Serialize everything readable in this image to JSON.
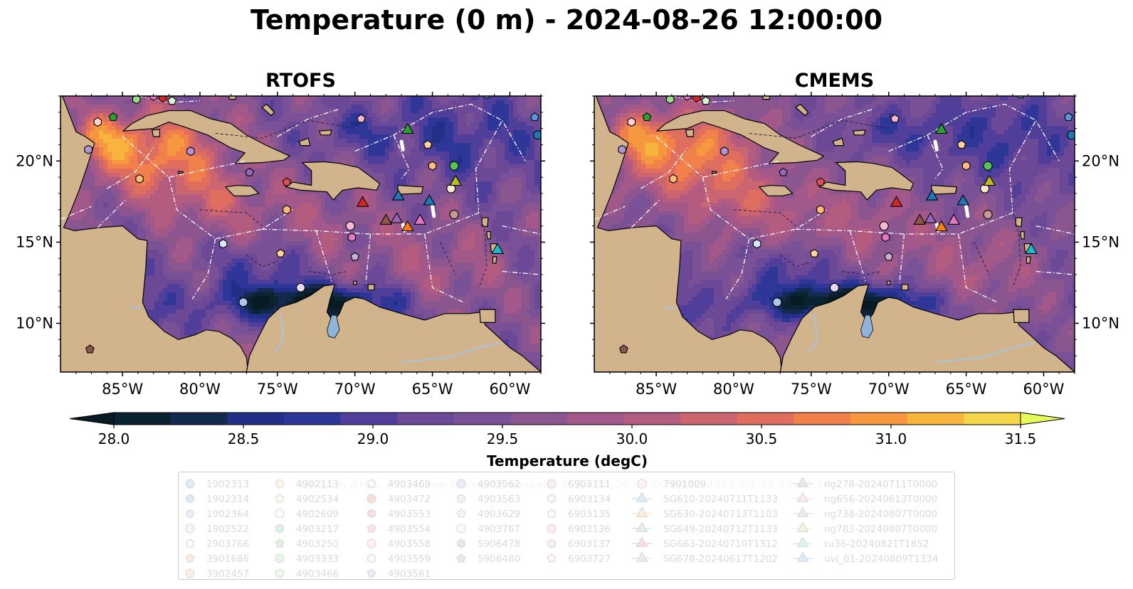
{
  "title": "Temperature (0 m) - 2024-08-26 12:00:00",
  "panels": [
    {
      "title": "RTOFS"
    },
    {
      "title": "CMEMS"
    }
  ],
  "lat_labels": [
    "20°N",
    "15°N",
    "10°N"
  ],
  "lon_labels": [
    "85°W",
    "80°W",
    "75°W",
    "70°W",
    "65°W",
    "60°W"
  ],
  "colorbar": {
    "label": "Temperature (degC)",
    "ticks": [
      "28.0",
      "28.5",
      "29.0",
      "29.5",
      "30.0",
      "30.5",
      "31.0",
      "31.5"
    ],
    "range": [
      28.0,
      31.5
    ],
    "colors": [
      "#0b2230",
      "#13294d",
      "#222f86",
      "#2e3798",
      "#503f9a",
      "#6b4997",
      "#7a5096",
      "#8b5590",
      "#a3588a",
      "#b45c80",
      "#cb6570",
      "#e06e5e",
      "#f1804a",
      "#f6983f",
      "#f8b43d",
      "#f3d649"
    ],
    "under_color": "#081a24",
    "over_color": "#e8fa5b"
  },
  "map_colors": {
    "land": "#d2b48c",
    "lake": "#8fb3d9",
    "river": "#a6c3e0"
  },
  "watermark": "Gliders, Argo, Hurricane Research Vessels: 2024-08-26 00:00:00 to 2024-08-26 12:00:00",
  "legend_columns": [
    [
      {
        "label": "1902313",
        "marker": "circle",
        "color": "#1f77b4"
      },
      {
        "label": "1902314",
        "marker": "hexagon",
        "color": "#1f77b4"
      },
      {
        "label": "1902364",
        "marker": "pentagon",
        "color": "#5599dd"
      },
      {
        "label": "1902522",
        "marker": "circle",
        "color": "#aec7e8"
      },
      {
        "label": "2903766",
        "marker": "hexagon",
        "color": "#d6e8f8"
      },
      {
        "label": "3901686",
        "marker": "pentagon",
        "color": "#ff7f0e"
      },
      {
        "label": "3902457",
        "marker": "circle",
        "color": "#ff8c28"
      }
    ],
    [
      {
        "label": "4902113",
        "marker": "hexagon",
        "color": "#ffbb78"
      },
      {
        "label": "4902534",
        "marker": "pentagon",
        "color": "#ffd39b"
      },
      {
        "label": "4902609",
        "marker": "circle",
        "color": "#ffe9cc"
      },
      {
        "label": "4903217",
        "marker": "hexagon",
        "color": "#2ca02c"
      },
      {
        "label": "4903250",
        "marker": "pentagon",
        "color": "#2ca02c"
      },
      {
        "label": "4903333",
        "marker": "circle",
        "color": "#55c455"
      },
      {
        "label": "4903466",
        "marker": "hexagon",
        "color": "#98df8a"
      }
    ],
    [
      {
        "label": "4903469",
        "marker": "pentagon",
        "color": "#d6f5d0"
      },
      {
        "label": "4903472",
        "marker": "circle",
        "color": "#d62728"
      },
      {
        "label": "4903553",
        "marker": "hexagon",
        "color": "#d62728"
      },
      {
        "label": "4903554",
        "marker": "pentagon",
        "color": "#e04f50"
      },
      {
        "label": "4903558",
        "marker": "circle",
        "color": "#ff9896"
      },
      {
        "label": "4903559",
        "marker": "hexagon",
        "color": "#ffd0cf"
      },
      {
        "label": "4903561",
        "marker": "pentagon",
        "color": "#9467bd"
      }
    ],
    [
      {
        "label": "4903562",
        "marker": "circle",
        "color": "#9467bd"
      },
      {
        "label": "4903563",
        "marker": "hexagon",
        "color": "#b294d6"
      },
      {
        "label": "4903629",
        "marker": "pentagon",
        "color": "#c5b0d5"
      },
      {
        "label": "4903767",
        "marker": "circle",
        "color": "#e5d8f0"
      },
      {
        "label": "5906478",
        "marker": "hexagon",
        "color": "#8c564b"
      },
      {
        "label": "5906480",
        "marker": "pentagon",
        "color": "#8c564b"
      }
    ],
    [
      {
        "label": "6903111",
        "marker": "circle",
        "color": "#c49c94"
      },
      {
        "label": "6903134",
        "marker": "hexagon",
        "color": "#e5b9ab"
      },
      {
        "label": "6903135",
        "marker": "pentagon",
        "color": "#f5ddd5"
      },
      {
        "label": "6903136",
        "marker": "circle",
        "color": "#e377c2"
      },
      {
        "label": "6903137",
        "marker": "hexagon",
        "color": "#e377c2"
      },
      {
        "label": "6903727",
        "marker": "pentagon",
        "color": "#f7b6d2"
      }
    ],
    [
      {
        "label": "7901009",
        "marker": "circle",
        "color": "#f7b6d2"
      },
      {
        "label": "SG610-20240711T1133",
        "marker": "triangle",
        "color": "#1f77b4"
      },
      {
        "label": "SG630-20240713T1103",
        "marker": "triangle",
        "color": "#ff7f0e"
      },
      {
        "label": "SG649-20240712T1133",
        "marker": "triangle",
        "color": "#2ca02c"
      },
      {
        "label": "SG663-20240710T1312",
        "marker": "triangle",
        "color": "#d62728"
      },
      {
        "label": "SG678-20240617T1202",
        "marker": "triangle",
        "color": "#9467bd"
      }
    ],
    [
      {
        "label": "ng278-20240711T0000",
        "marker": "triangle",
        "color": "#8c564b"
      },
      {
        "label": "ng656-20240613T0000",
        "marker": "triangle",
        "color": "#e377c2"
      },
      {
        "label": "ng738-20240807T0000",
        "marker": "triangle",
        "color": "#7f7f7f"
      },
      {
        "label": "ng783-20240807T0000",
        "marker": "triangle",
        "color": "#bcbd22"
      },
      {
        "label": "ru36-20240821T1852",
        "marker": "triangle",
        "color": "#17becf"
      },
      {
        "label": "uvi_01-20240809T1334",
        "marker": "triangle",
        "color": "#1f77b4"
      }
    ]
  ],
  "chart_data": {
    "type": "heatmap",
    "title": "Temperature (0 m) - 2024-08-26 12:00:00",
    "panels": [
      "RTOFS",
      "CMEMS"
    ],
    "lon_range": [
      -89,
      -58
    ],
    "lat_range": [
      7,
      24
    ],
    "color_range": [
      28.0,
      31.5
    ],
    "colorbar_label": "Temperature (degC)",
    "observations": [
      {
        "name": "4903250",
        "marker": "pentagon",
        "color": "#2ca02c",
        "lon": -85.6,
        "lat": 22.7
      },
      {
        "name": "6903137",
        "marker": "hexagon",
        "color": "#e377c2",
        "lon": -83.0,
        "lat": 24.0
      },
      {
        "name": "4903466",
        "marker": "hexagon",
        "color": "#98df8a",
        "lon": -84.1,
        "lat": 23.8
      },
      {
        "name": "4903559",
        "marker": "hexagon",
        "color": "#ffd0cf",
        "lon": -86.6,
        "lat": 22.4
      },
      {
        "name": "4903469",
        "marker": "pentagon",
        "color": "#d6f5d0",
        "lon": -81.8,
        "lat": 23.7
      },
      {
        "name": "4903553",
        "marker": "hexagon",
        "color": "#d62728",
        "lon": -82.4,
        "lat": 23.9
      },
      {
        "name": "4903563",
        "marker": "hexagon",
        "color": "#b294d6",
        "lon": -87.2,
        "lat": 20.7
      },
      {
        "name": "4903563",
        "marker": "hexagon",
        "color": "#b294d6",
        "lon": -80.6,
        "lat": 20.6
      },
      {
        "name": "4903561",
        "marker": "pentagon",
        "color": "#9467bd",
        "lon": -76.8,
        "lat": 19.3
      },
      {
        "name": "4902113",
        "marker": "hexagon",
        "color": "#ffbb78",
        "lon": -83.9,
        "lat": 18.9
      },
      {
        "name": "4903554",
        "marker": "pentagon",
        "color": "#e04f50",
        "lon": -74.4,
        "lat": 18.7
      },
      {
        "name": "4902113",
        "marker": "hexagon",
        "color": "#ffbb78",
        "lon": -74.4,
        "lat": 17.0
      },
      {
        "name": "6903727",
        "marker": "pentagon",
        "color": "#f7b6d2",
        "lon": -69.6,
        "lat": 22.6
      },
      {
        "name": "4903629",
        "marker": "pentagon",
        "color": "#c5b0d5",
        "lon": -70.0,
        "lat": 14.1
      },
      {
        "name": "7901009",
        "marker": "circle",
        "color": "#f7b6d2",
        "lon": -70.3,
        "lat": 16.0
      },
      {
        "name": "6903137",
        "marker": "hexagon",
        "color": "#e377c2",
        "lon": -70.2,
        "lat": 15.3
      },
      {
        "name": "2903766",
        "marker": "hexagon",
        "color": "#d6e8f8",
        "lon": -78.5,
        "lat": 14.9
      },
      {
        "name": "4902534",
        "marker": "pentagon",
        "color": "#ffd39b",
        "lon": -74.8,
        "lat": 14.3
      },
      {
        "name": "4903767",
        "marker": "circle",
        "color": "#e5d8f0",
        "lon": -73.5,
        "lat": 12.2
      },
      {
        "name": "1902522",
        "marker": "circle",
        "color": "#aec7e8",
        "lon": -77.2,
        "lat": 11.3
      },
      {
        "name": "5906480",
        "marker": "pentagon",
        "color": "#8c564b",
        "lon": -87.1,
        "lat": 8.4
      },
      {
        "name": "4902534",
        "marker": "pentagon",
        "color": "#ffd39b",
        "lon": -65.3,
        "lat": 21.0
      },
      {
        "name": "4902113",
        "marker": "hexagon",
        "color": "#ffbb78",
        "lon": -65.0,
        "lat": 19.7
      },
      {
        "name": "4903333",
        "marker": "circle",
        "color": "#55c455",
        "lon": -63.6,
        "lat": 19.7
      },
      {
        "name": "4902609",
        "marker": "circle",
        "color": "#ffe9cc",
        "lon": -63.8,
        "lat": 18.3
      },
      {
        "name": "6903111",
        "marker": "circle",
        "color": "#c49c94",
        "lon": -63.6,
        "lat": 16.7
      },
      {
        "name": "1902364",
        "marker": "pentagon",
        "color": "#5599dd",
        "lon": -61.5,
        "lat": 24.1
      },
      {
        "name": "1902364",
        "marker": "pentagon",
        "color": "#5599dd",
        "lon": -58.4,
        "lat": 22.7
      },
      {
        "name": "1902313",
        "marker": "circle",
        "color": "#1f77b4",
        "lon": -58.2,
        "lat": 21.6
      },
      {
        "name": "SG649-20240712T1133",
        "marker": "triangle",
        "color": "#2ca02c",
        "lon": -66.6,
        "lat": 21.9
      },
      {
        "name": "ng783-20240807T0000",
        "marker": "triangle",
        "color": "#bcbd22",
        "lon": -63.5,
        "lat": 18.7
      },
      {
        "name": "uvi_01-20240809T1334",
        "marker": "triangle",
        "color": "#1f77b4",
        "lon": -67.2,
        "lat": 17.8
      },
      {
        "name": "SG610-20240711T1133",
        "marker": "triangle",
        "color": "#1f77b4",
        "lon": -65.2,
        "lat": 17.5
      },
      {
        "name": "SG663-20240710T1312",
        "marker": "triangle",
        "color": "#d62728",
        "lon": -69.5,
        "lat": 17.4
      },
      {
        "name": "ng278-20240711T0000",
        "marker": "triangle",
        "color": "#8c564b",
        "lon": -68.0,
        "lat": 16.3
      },
      {
        "name": "SG678-20240617T1202",
        "marker": "triangle",
        "color": "#9467bd",
        "lon": -67.3,
        "lat": 16.4
      },
      {
        "name": "ng656-20240613T0000",
        "marker": "triangle",
        "color": "#e377c2",
        "lon": -65.8,
        "lat": 16.3
      },
      {
        "name": "SG630-20240713T1103",
        "marker": "triangle",
        "color": "#ff7f0e",
        "lon": -66.6,
        "lat": 15.9
      },
      {
        "name": "ru36-20240821T1852",
        "marker": "triangle",
        "color": "#17becf",
        "lon": -60.8,
        "lat": 14.5
      }
    ]
  }
}
